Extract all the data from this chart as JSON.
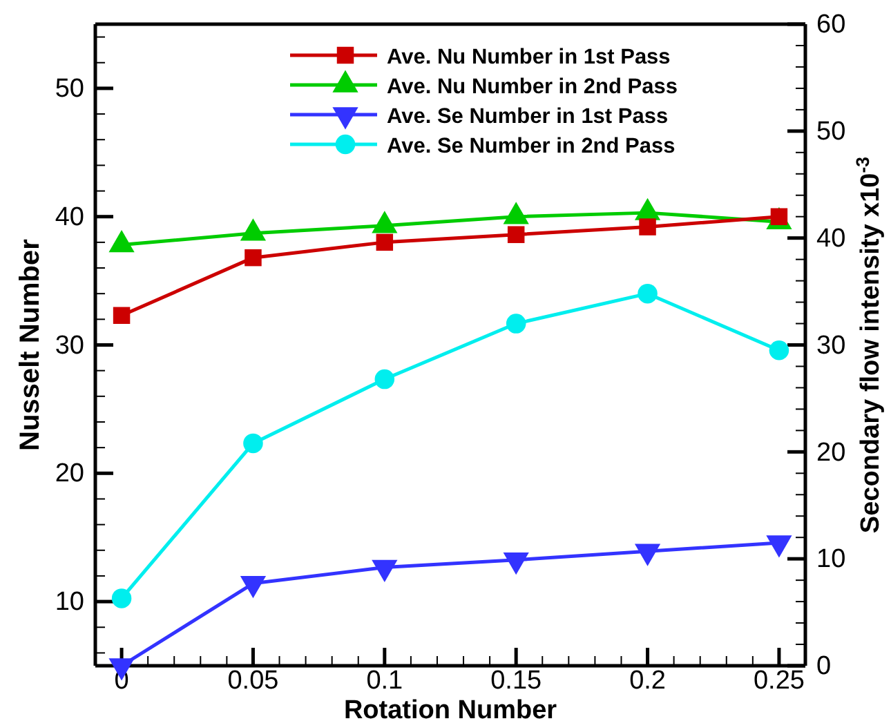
{
  "chart_data": {
    "type": "line",
    "xlabel": "Rotation Number",
    "ylabel": "Nusselt Number",
    "y2label": "Secondary flow intensity  x10$^{-3}$",
    "x": [
      0,
      0.05,
      0.1,
      0.15,
      0.2,
      0.25
    ],
    "xlim": [
      -0.01,
      0.26
    ],
    "xticks": [
      0,
      {
        "value": 0.01,
        "label": null
      },
      {
        "value": 0.02,
        "label": null
      },
      {
        "value": 0.03,
        "label": null
      },
      {
        "value": 0.04,
        "label": null
      },
      0.05,
      {
        "value": 0.06,
        "label": null
      },
      {
        "value": 0.07,
        "label": null
      },
      {
        "value": 0.08,
        "label": null
      },
      {
        "value": 0.09,
        "label": null
      },
      0.1,
      {
        "value": 0.11,
        "label": null
      },
      {
        "value": 0.12,
        "label": null
      },
      {
        "value": 0.13,
        "label": null
      },
      {
        "value": 0.14,
        "label": null
      },
      0.15,
      {
        "value": 0.16,
        "label": null
      },
      {
        "value": 0.17,
        "label": null
      },
      {
        "value": 0.18,
        "label": null
      },
      {
        "value": 0.19,
        "label": null
      },
      0.2,
      {
        "value": 0.21,
        "label": null
      },
      {
        "value": 0.22,
        "label": null
      },
      {
        "value": 0.23,
        "label": null
      },
      {
        "value": 0.24,
        "label": null
      },
      0.25
    ],
    "ylim": [
      5,
      55
    ],
    "yticks": [
      {
        "value": 6,
        "label": null
      },
      {
        "value": 8,
        "label": null
      },
      10,
      {
        "value": 12,
        "label": null
      },
      {
        "value": 14,
        "label": null
      },
      {
        "value": 16,
        "label": null
      },
      {
        "value": 18,
        "label": null
      },
      20,
      {
        "value": 22,
        "label": null
      },
      {
        "value": 24,
        "label": null
      },
      {
        "value": 26,
        "label": null
      },
      {
        "value": 28,
        "label": null
      },
      30,
      {
        "value": 32,
        "label": null
      },
      {
        "value": 34,
        "label": null
      },
      {
        "value": 36,
        "label": null
      },
      {
        "value": 38,
        "label": null
      },
      40,
      {
        "value": 42,
        "label": null
      },
      {
        "value": 44,
        "label": null
      },
      {
        "value": 46,
        "label": null
      },
      {
        "value": 48,
        "label": null
      },
      50,
      {
        "value": 52,
        "label": null
      },
      {
        "value": 54,
        "label": null
      }
    ],
    "y2lim": [
      0,
      60
    ],
    "y2ticks": [
      0,
      {
        "value": 2,
        "label": null
      },
      {
        "value": 4,
        "label": null
      },
      {
        "value": 6,
        "label": null
      },
      {
        "value": 8,
        "label": null
      },
      10,
      {
        "value": 12,
        "label": null
      },
      {
        "value": 14,
        "label": null
      },
      {
        "value": 16,
        "label": null
      },
      {
        "value": 18,
        "label": null
      },
      20,
      {
        "value": 22,
        "label": null
      },
      {
        "value": 24,
        "label": null
      },
      {
        "value": 26,
        "label": null
      },
      {
        "value": 28,
        "label": null
      },
      30,
      {
        "value": 32,
        "label": null
      },
      {
        "value": 34,
        "label": null
      },
      {
        "value": 36,
        "label": null
      },
      {
        "value": 38,
        "label": null
      },
      40,
      {
        "value": 42,
        "label": null
      },
      {
        "value": 44,
        "label": null
      },
      {
        "value": 46,
        "label": null
      },
      {
        "value": 48,
        "label": null
      },
      50,
      {
        "value": 52,
        "label": null
      },
      {
        "value": 54,
        "label": null
      },
      {
        "value": 56,
        "label": null
      },
      {
        "value": 58,
        "label": null
      },
      60
    ],
    "legend": "top",
    "grid": false,
    "line_style": "solid",
    "series": [
      {
        "name": "Ave. Nu Number in 1st Pass",
        "color": "#cc0000",
        "marker": "square",
        "values": [
          32.3,
          36.8,
          38.0,
          38.6,
          39.2,
          40.0
        ]
      },
      {
        "name": "Ave. Nu Number in 2nd Pass",
        "color": "#00cc00",
        "marker": "triangle",
        "values": [
          37.8,
          38.7,
          39.3,
          40.0,
          40.3,
          39.6
        ]
      },
      {
        "name": "Ave. Se Number in 1st Pass",
        "color": "#3333ff",
        "marker": "triangle-down",
        "axis": "y2",
        "values": [
          0,
          7.7,
          9.2,
          9.9,
          10.7,
          11.5
        ]
      },
      {
        "name": "Ave. Se Number in 2nd Pass",
        "color": "#00eeee",
        "marker": "circle",
        "axis": "y2",
        "values": [
          6.3,
          20.8,
          26.8,
          32.0,
          34.8,
          29.5
        ]
      }
    ]
  }
}
